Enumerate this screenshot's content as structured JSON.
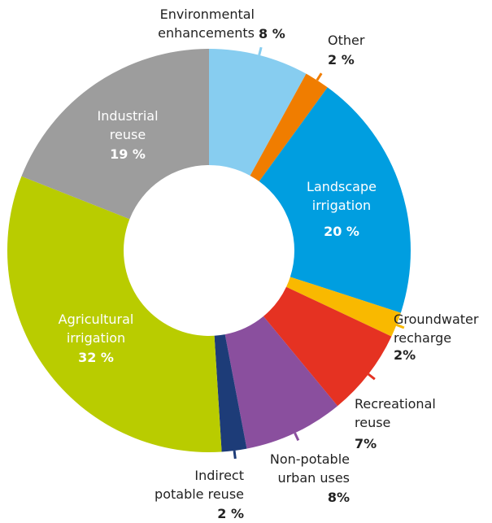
{
  "chart_data": {
    "type": "donut",
    "categories": [
      "Environmental\nenhancements",
      "Other",
      "Landscape\nirrigation",
      "Groundwater\nrecharge",
      "Recreational\nreuse",
      "Non-potable\nurban uses",
      "Indirect\npotable reuse",
      "Agricultural\nirrigation",
      "Industrial\nreuse"
    ],
    "values": [
      8,
      2,
      20,
      2,
      7,
      8,
      2,
      32,
      19
    ],
    "value_labels": [
      "8 %",
      "2 %",
      "20 %",
      "2%",
      "7%",
      "8%",
      "2 %",
      "32 %",
      "19 %"
    ],
    "colors": [
      "#87cdf0",
      "#f07d00",
      "#009ee0",
      "#f9b900",
      "#e53222",
      "#8a4f9e",
      "#1d3c78",
      "#b9cc00",
      "#9d9d9d"
    ]
  }
}
